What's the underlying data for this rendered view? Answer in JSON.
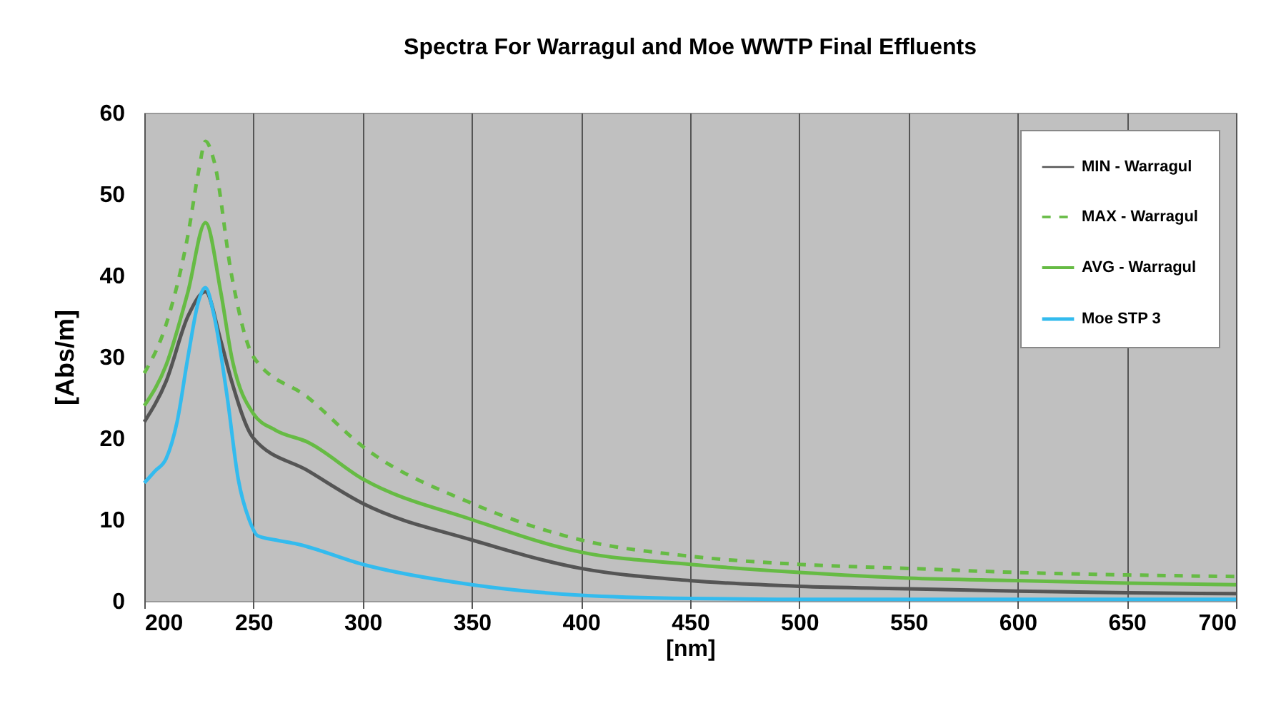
{
  "chart_data": {
    "type": "line",
    "title": "Spectra For Warragul and Moe WWTP Final Effluents",
    "xlabel": "[nm]",
    "ylabel": "[Abs/m]",
    "xlim": [
      200,
      700
    ],
    "xticks": [
      200,
      250,
      300,
      350,
      400,
      450,
      500,
      550,
      600,
      650,
      700
    ],
    "ylim": [
      0,
      60
    ],
    "yticks": [
      0,
      10,
      20,
      30,
      40,
      50,
      60
    ],
    "grid": "x",
    "legend": "top right",
    "series": [
      {
        "name": "MIN - Warragul",
        "color": "#555555",
        "line_style": "solid",
        "x": [
          200,
          210,
          220,
          228,
          235,
          240,
          250,
          275,
          300,
          350,
          400,
          450,
          500,
          550,
          600,
          650,
          700
        ],
        "values": [
          22,
          27,
          35,
          38,
          32,
          27,
          20,
          16,
          12,
          7.5,
          4,
          2.5,
          1.8,
          1.5,
          1.2,
          1,
          0.9
        ]
      },
      {
        "name": "MAX - Warragul",
        "color": "#66bb44",
        "line_style": "dashed",
        "x": [
          200,
          210,
          220,
          225,
          228,
          232,
          240,
          250,
          275,
          300,
          350,
          400,
          450,
          500,
          550,
          600,
          650,
          700
        ],
        "values": [
          28,
          34,
          45,
          53,
          56.5,
          54,
          40,
          30,
          25,
          19,
          12,
          7.5,
          5.5,
          4.5,
          4,
          3.5,
          3.2,
          3
        ]
      },
      {
        "name": "AVG - Warragul",
        "color": "#66bb44",
        "line_style": "solid",
        "x": [
          200,
          210,
          220,
          228,
          235,
          240,
          250,
          260,
          275,
          300,
          350,
          400,
          450,
          500,
          550,
          600,
          650,
          700
        ],
        "values": [
          24,
          29,
          38,
          46.5,
          38,
          30,
          23,
          21,
          19.5,
          15,
          10,
          6,
          4.5,
          3.5,
          2.8,
          2.5,
          2.2,
          2
        ]
      },
      {
        "name": "Moe STP 3",
        "color": "#33bbee",
        "line_style": "solid",
        "x": [
          200,
          205,
          210,
          215,
          220,
          225,
          228,
          232,
          238,
          243,
          248,
          252,
          260,
          270,
          300,
          350,
          400,
          450,
          500,
          700
        ],
        "values": [
          14.5,
          16,
          17.5,
          22,
          30,
          37,
          38.5,
          35,
          25,
          15,
          10,
          8,
          7.5,
          7,
          4.5,
          2,
          0.7,
          0.3,
          0.2,
          0.2
        ]
      }
    ]
  }
}
